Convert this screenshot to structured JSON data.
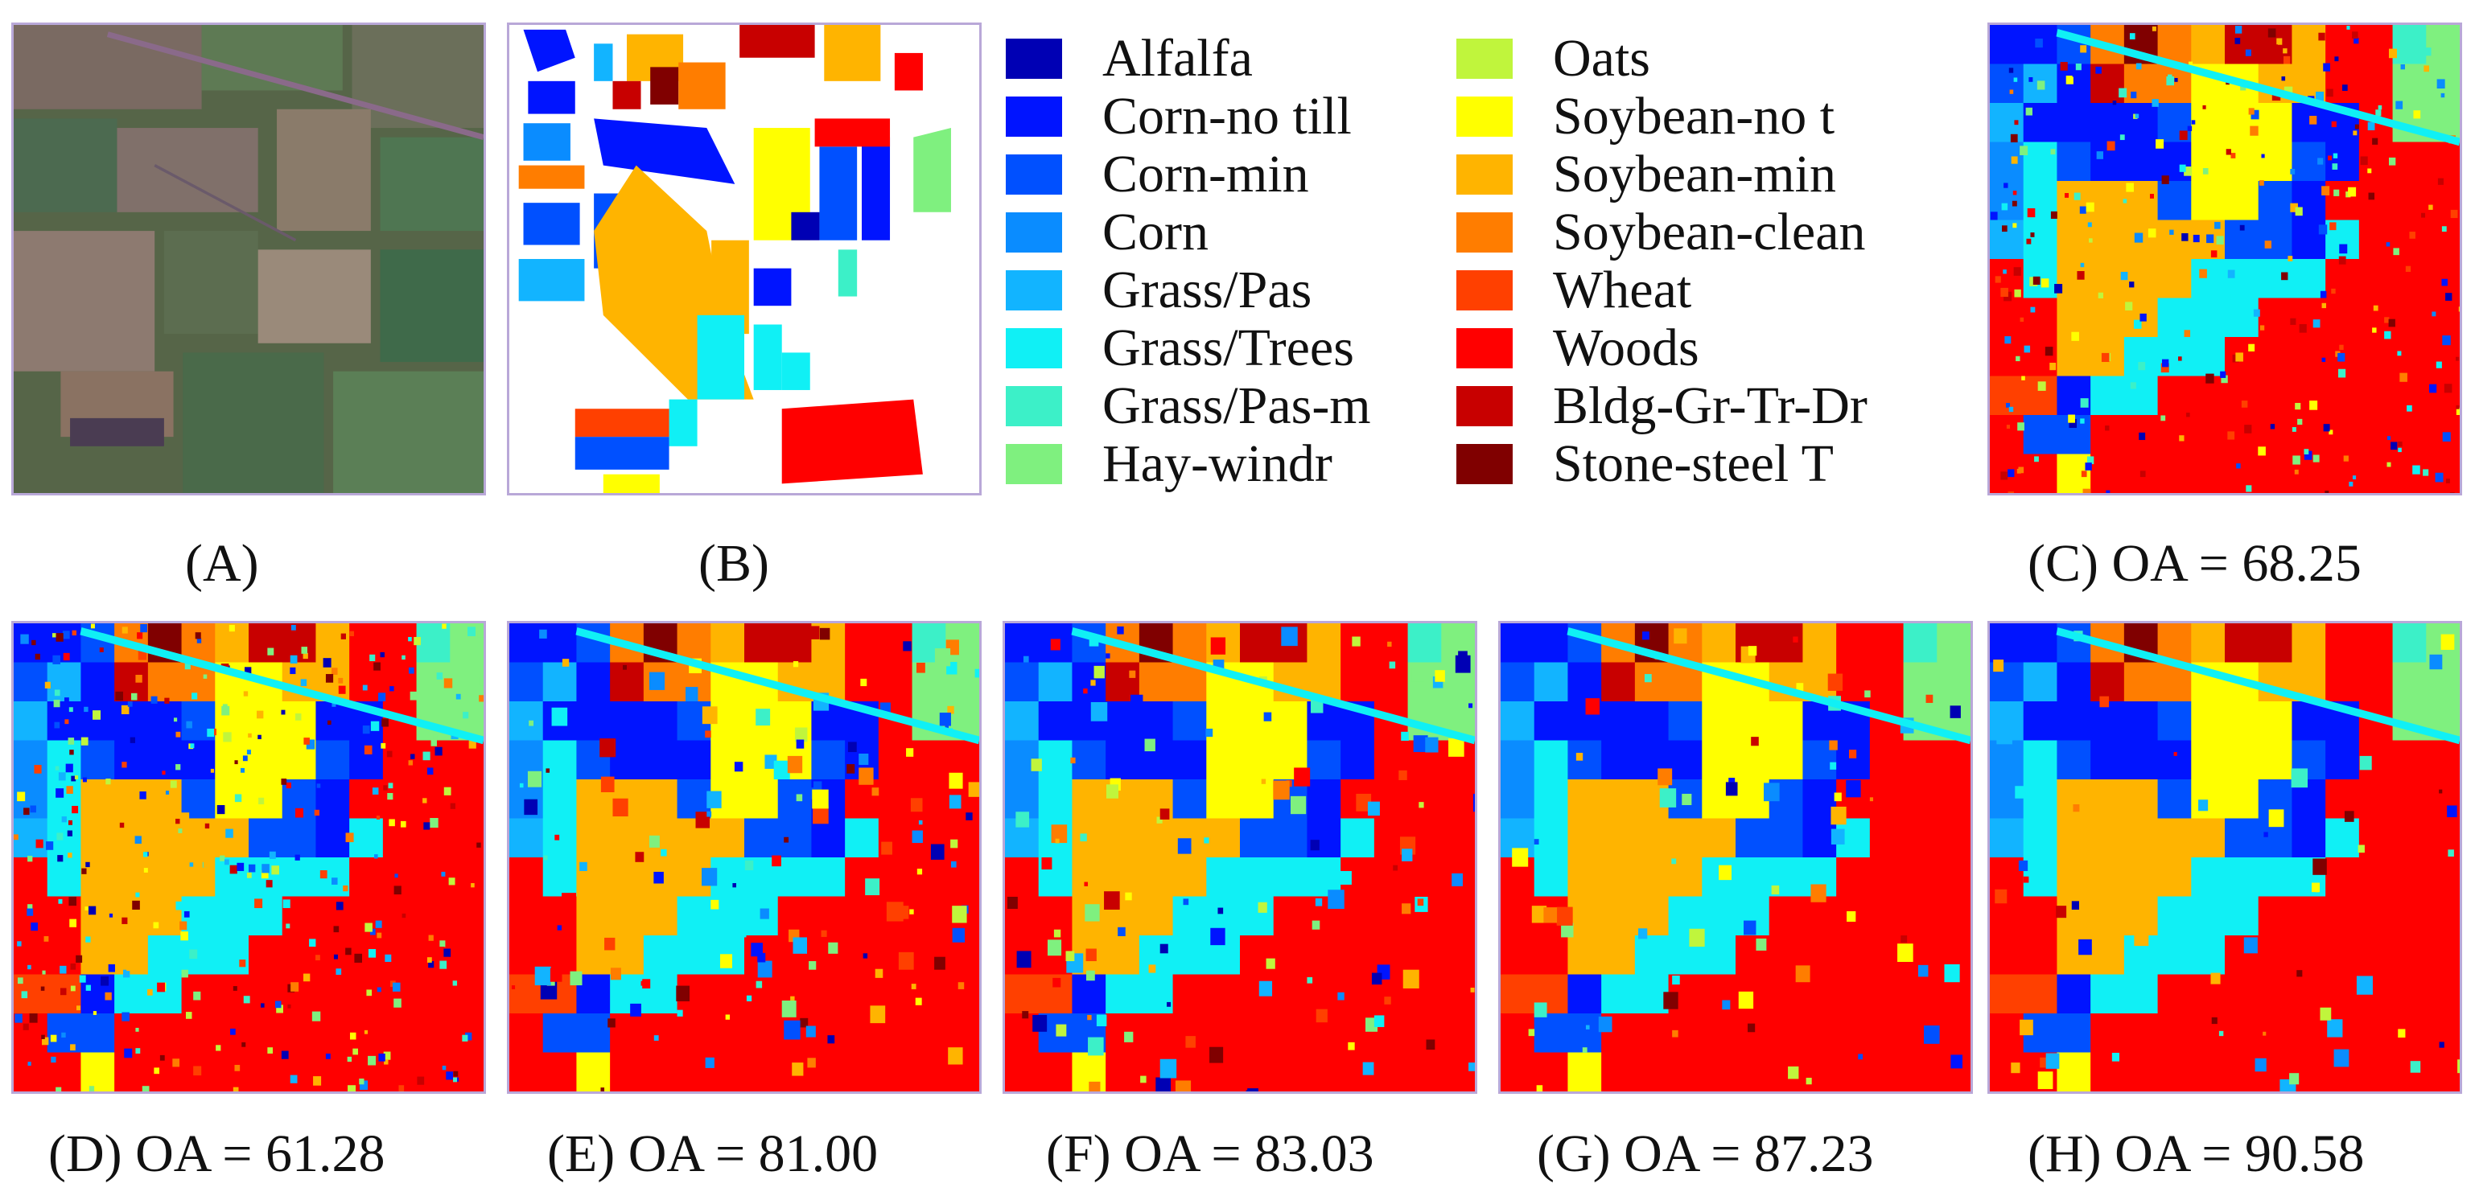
{
  "legend": {
    "items": [
      {
        "label": "Alfalfa",
        "color": "#0000b4"
      },
      {
        "label": "Corn-no till",
        "color": "#0014ff"
      },
      {
        "label": "Corn-min",
        "color": "#0050ff"
      },
      {
        "label": "Corn",
        "color": "#0a8cff"
      },
      {
        "label": "Grass/Pas",
        "color": "#12b4ff"
      },
      {
        "label": "Grass/Trees",
        "color": "#10f0f5"
      },
      {
        "label": "Grass/Pas-m",
        "color": "#3cf0c8"
      },
      {
        "label": "Hay-windr",
        "color": "#7ff07f"
      },
      {
        "label": "Oats",
        "color": "#c0f53c"
      },
      {
        "label": "Soybean-no t",
        "color": "#ffff00"
      },
      {
        "label": "Soybean-min",
        "color": "#ffb400"
      },
      {
        "label": "Soybean-clean",
        "color": "#ff7d00"
      },
      {
        "label": "Wheat",
        "color": "#ff4000"
      },
      {
        "label": "Woods",
        "color": "#ff0000"
      },
      {
        "label": "Bldg-Gr-Tr-Dr",
        "color": "#c80000"
      },
      {
        "label": "Stone-steel T",
        "color": "#800000"
      }
    ]
  },
  "captions": {
    "a": "(A)",
    "b": "(B)",
    "c": "(C) OA = 68.25",
    "d": "(D) OA = 61.28",
    "e": "(E) OA = 81.00",
    "f": "(F) OA = 83.03",
    "g": "(G) OA = 87.23",
    "h": "(H) OA = 90.58"
  },
  "colors": {
    "background": "#ffffff",
    "panel_border": "#b9a8d8",
    "aerial_base": "#5b6a4c"
  }
}
